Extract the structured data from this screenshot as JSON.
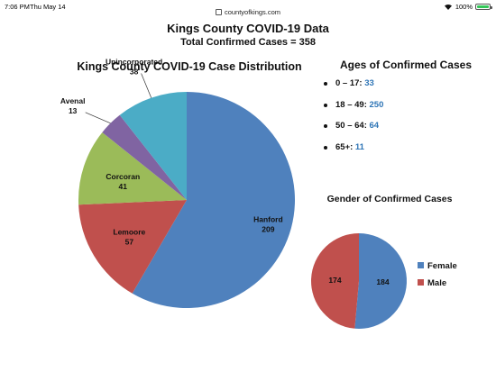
{
  "status_bar": {
    "time": "7:06 PM",
    "date": "Thu May 14",
    "url": "countyofkings.com",
    "battery": "100%"
  },
  "header": {
    "title": "Kings County COVID-19 Data",
    "subtitle": "Total Confirmed Cases = 358"
  },
  "ages": {
    "title": "Ages of Confirmed Cases",
    "items": [
      {
        "range": "0 – 17:",
        "value": "33"
      },
      {
        "range": "18 – 49:",
        "value": "250"
      },
      {
        "range": "50 – 64:",
        "value": "64"
      },
      {
        "range": "65+:",
        "value": "11"
      }
    ]
  },
  "colors": {
    "hanford": "#4f81bd",
    "lemoore": "#c0504d",
    "corcoran": "#9bbb59",
    "avenal": "#8064a2",
    "unincorporated": "#4bacc6",
    "female": "#4f81bd",
    "male": "#c0504d"
  },
  "chart_data": [
    {
      "type": "pie",
      "title": "Kings County COVID-19 Case Distribution",
      "slices": [
        {
          "name": "Hanford",
          "value": 209
        },
        {
          "name": "Lemoore",
          "value": 57
        },
        {
          "name": "Corcoran",
          "value": 41
        },
        {
          "name": "Avenal",
          "value": 13
        },
        {
          "name": "Unincorporated",
          "value": 38
        }
      ]
    },
    {
      "type": "pie",
      "title": "Gender of Confirmed Cases",
      "slices": [
        {
          "name": "Female",
          "value": 184
        },
        {
          "name": "Male",
          "value": 174
        }
      ],
      "legend": "right"
    }
  ]
}
